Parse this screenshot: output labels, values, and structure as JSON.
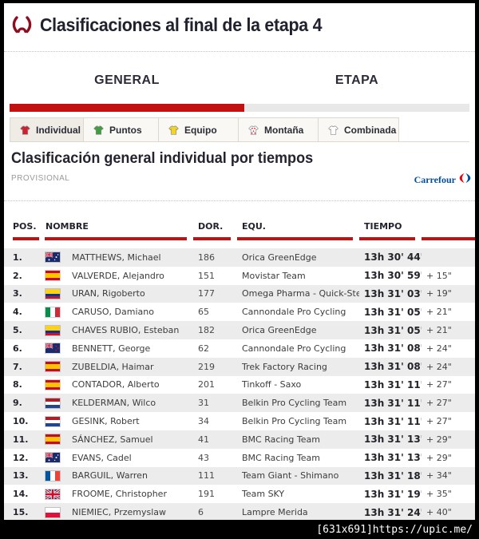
{
  "header": {
    "title": "Clasificaciones al final de la etapa 4"
  },
  "main_tabs": [
    {
      "label": "GENERAL",
      "active": true
    },
    {
      "label": "ETAPA",
      "active": false
    }
  ],
  "sub_tabs": [
    {
      "label": "Individual",
      "jersey": "red",
      "active": true
    },
    {
      "label": "Puntos",
      "jersey": "green",
      "active": false
    },
    {
      "label": "Equipo",
      "jersey": "yellow",
      "active": false
    },
    {
      "label": "Montaña",
      "jersey": "polka",
      "active": false
    },
    {
      "label": "Combinada",
      "jersey": "white",
      "active": false
    }
  ],
  "section": {
    "title": "Clasificación general individual por tiempos",
    "subtitle": "PROVISIONAL",
    "sponsor": "Carrefour"
  },
  "table": {
    "columns": [
      "POS.",
      "NOMBRE",
      "DOR.",
      "EQU.",
      "TIEMPO",
      ""
    ],
    "rows": [
      {
        "pos": "1.",
        "country": "au",
        "name": "MATTHEWS, Michael",
        "dorsal": "186",
        "team": "Orica GreenEdge",
        "time": "13h 30' 44''",
        "gap": ""
      },
      {
        "pos": "2.",
        "country": "es",
        "name": "VALVERDE, Alejandro",
        "dorsal": "151",
        "team": "Movistar Team",
        "time": "13h 30' 59''",
        "gap": "+ 15\""
      },
      {
        "pos": "3.",
        "country": "co",
        "name": "URAN, Rigoberto",
        "dorsal": "177",
        "team": "Omega Pharma - Quick-Step",
        "time": "13h 31' 03''",
        "gap": "+ 19\""
      },
      {
        "pos": "4.",
        "country": "it",
        "name": "CARUSO, Damiano",
        "dorsal": "65",
        "team": "Cannondale Pro Cycling",
        "time": "13h 31' 05''",
        "gap": "+ 21\""
      },
      {
        "pos": "5.",
        "country": "co",
        "name": "CHAVES RUBIO, Esteban",
        "dorsal": "182",
        "team": "Orica GreenEdge",
        "time": "13h 31' 05''",
        "gap": "+ 21\""
      },
      {
        "pos": "6.",
        "country": "nz",
        "name": "BENNETT, George",
        "dorsal": "62",
        "team": "Cannondale Pro Cycling",
        "time": "13h 31' 08''",
        "gap": "+ 24\""
      },
      {
        "pos": "7.",
        "country": "es",
        "name": "ZUBELDIA, Haimar",
        "dorsal": "219",
        "team": "Trek Factory Racing",
        "time": "13h 31' 08''",
        "gap": "+ 24\""
      },
      {
        "pos": "8.",
        "country": "es",
        "name": "CONTADOR, Alberto",
        "dorsal": "201",
        "team": "Tinkoff - Saxo",
        "time": "13h 31' 11''",
        "gap": "+ 27\""
      },
      {
        "pos": "9.",
        "country": "nl",
        "name": "KELDERMAN, Wilco",
        "dorsal": "31",
        "team": "Belkin Pro Cycling Team",
        "time": "13h 31' 11''",
        "gap": "+ 27\""
      },
      {
        "pos": "10.",
        "country": "nl",
        "name": "GESINK, Robert",
        "dorsal": "34",
        "team": "Belkin Pro Cycling Team",
        "time": "13h 31' 11''",
        "gap": "+ 27\""
      },
      {
        "pos": "11.",
        "country": "es",
        "name": "SÁNCHEZ, Samuel",
        "dorsal": "41",
        "team": "BMC Racing Team",
        "time": "13h 31' 13''",
        "gap": "+ 29\""
      },
      {
        "pos": "12.",
        "country": "au",
        "name": "EVANS, Cadel",
        "dorsal": "43",
        "team": "BMC Racing Team",
        "time": "13h 31' 13''",
        "gap": "+ 29\""
      },
      {
        "pos": "13.",
        "country": "fr",
        "name": "BARGUIL, Warren",
        "dorsal": "111",
        "team": "Team Giant - Shimano",
        "time": "13h 31' 18''",
        "gap": "+ 34\""
      },
      {
        "pos": "14.",
        "country": "gb",
        "name": "FROOME, Christopher",
        "dorsal": "191",
        "team": "Team SKY",
        "time": "13h 31' 19''",
        "gap": "+ 35\""
      },
      {
        "pos": "15.",
        "country": "pl",
        "name": "NIEMIEC, Przemyslaw",
        "dorsal": "6",
        "team": "Lampre Merida",
        "time": "13h 31' 24''",
        "gap": "+ 40\""
      }
    ]
  },
  "watermark": "[631x691]https://upic.me/",
  "colors": {
    "accent_red": "#c21111",
    "bar_inactive": "#e8e8e8",
    "row_alt": "#ececec",
    "text_dark": "#23242e",
    "sponsor_blue": "#004e9f",
    "sponsor_red": "#e30613",
    "logo_darkred": "#8e0e20"
  }
}
